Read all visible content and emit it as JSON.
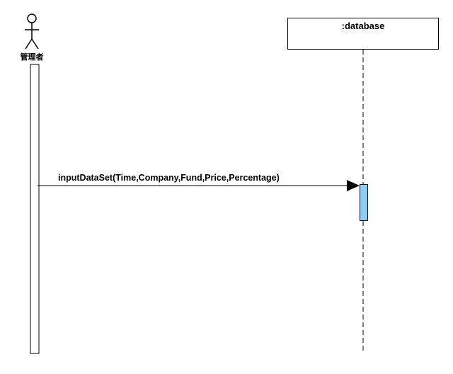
{
  "diagram": {
    "type": "sequence",
    "actor": {
      "label": "管理者",
      "icon": "stick-figure-icon"
    },
    "object": {
      "label": ":database"
    },
    "message": {
      "label": "inputDataSet(Time,Company,Fund,Price,Percentage)",
      "kind": "synchronous"
    },
    "colors": {
      "line": "#000000",
      "activation_fill": "#87cefa",
      "background": "#ffffff"
    }
  }
}
